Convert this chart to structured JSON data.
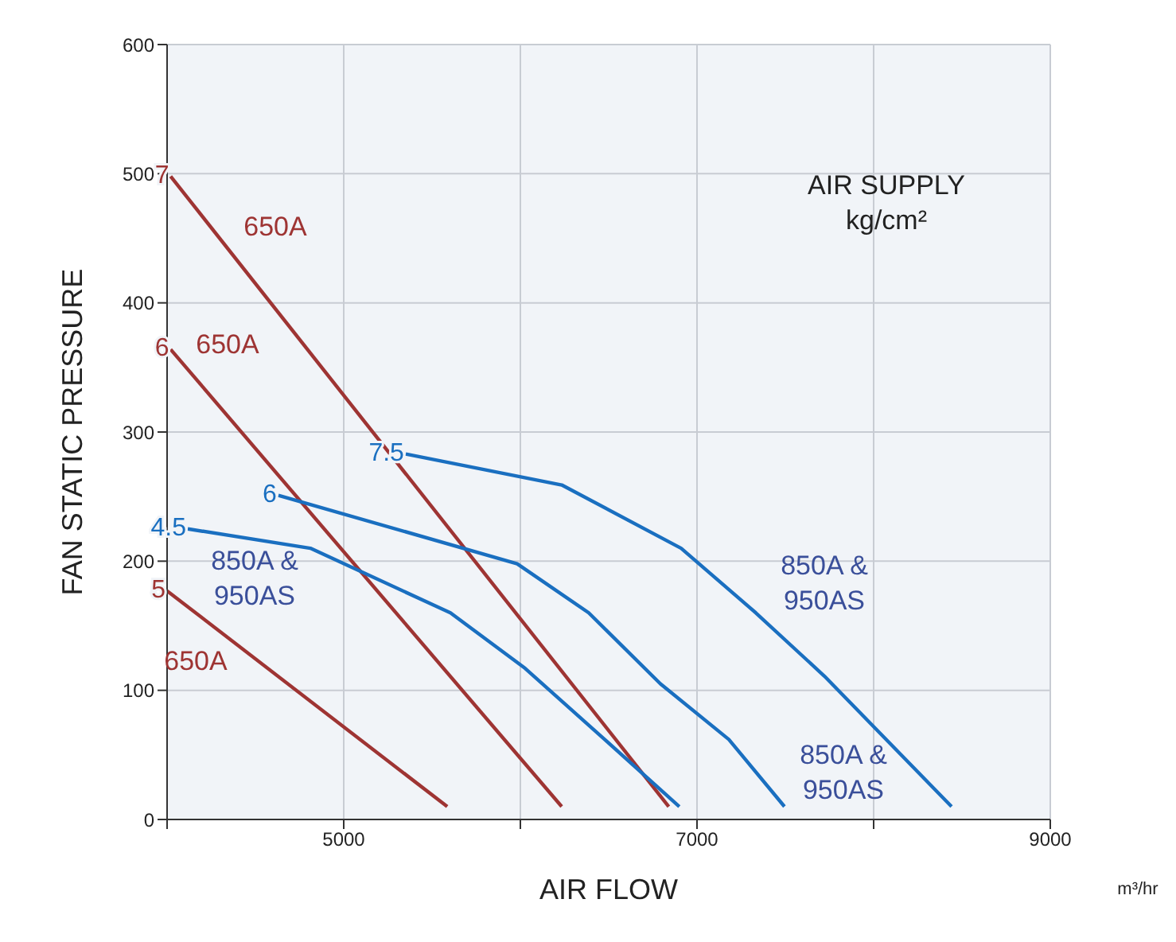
{
  "chart_data": {
    "type": "line",
    "xlabel": "AIR FLOW",
    "ylabel": "FAN STATIC PRESSURE",
    "xlim": [
      4000,
      9000
    ],
    "xticks": [
      {
        "value": 4000,
        "label": null
      },
      5000,
      {
        "value": 6000,
        "label": null
      },
      7000,
      {
        "value": 8000,
        "label": null
      },
      9000
    ],
    "ylim": [
      0,
      600
    ],
    "yticks": [
      0,
      100,
      200,
      300,
      400,
      500,
      600
    ],
    "grid": true,
    "marker": "none",
    "line_style": "solid",
    "legend": false,
    "series": [
      {
        "name": "7",
        "color": "#9e3433",
        "x": [
          4020,
          6840
        ],
        "values": [
          498,
          10
        ]
      },
      {
        "name": "6",
        "color": "#9e3433",
        "x": [
          4020,
          6234
        ],
        "values": [
          364,
          10
        ]
      },
      {
        "name": "5",
        "color": "#9e3433",
        "x": [
          4000,
          5586
        ],
        "values": [
          177,
          10
        ]
      },
      {
        "name": "4.5",
        "color": "#1a6fc0",
        "x": [
          4117,
          4811,
          5604,
          6027,
          6477,
          6900
        ],
        "values": [
          225,
          210,
          160,
          117,
          62,
          10
        ]
      },
      {
        "name": "6",
        "color": "#1a6fc0",
        "x": [
          4630,
          5982,
          6387,
          6793,
          7180,
          7495
        ],
        "values": [
          251,
          198,
          160,
          105,
          62,
          10
        ]
      },
      {
        "name": "7.5",
        "color": "#1a6fc0",
        "x": [
          5351,
          6234,
          6910,
          7333,
          7721,
          8441
        ],
        "values": [
          283,
          259,
          210,
          160,
          111,
          10
        ]
      }
    ],
    "annotations": [
      "650A",
      "650A",
      "650A",
      "850A &\n950AS",
      "850A &\n950AS",
      "850A &\n950AS",
      "AIR SUPPLY\nkg/cm²",
      "m³/hr"
    ]
  }
}
